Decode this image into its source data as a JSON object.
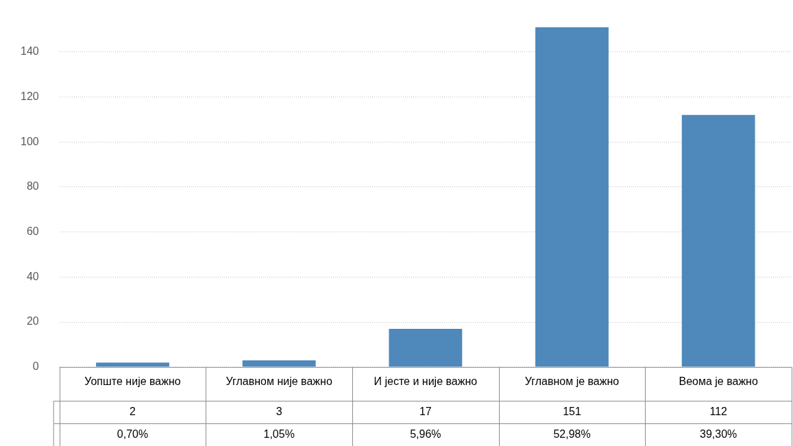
{
  "chart_data": {
    "type": "bar",
    "categories": [
      "Уопште није важно",
      "Углавном није важно",
      "И јесте и није важно",
      "Углавном је важно",
      "Веома је важно"
    ],
    "values": [
      2,
      3,
      17,
      151,
      112
    ],
    "color": "#4f88bb",
    "ylim": [
      0,
      151
    ],
    "yticks": [
      0,
      20,
      40,
      60,
      80,
      100,
      120,
      140
    ],
    "grid": "y",
    "legend": false,
    "data_labels": true,
    "annotations": [
      "0,70%",
      "1,05%",
      "5,96%",
      "52,98%",
      "39,30%"
    ]
  }
}
